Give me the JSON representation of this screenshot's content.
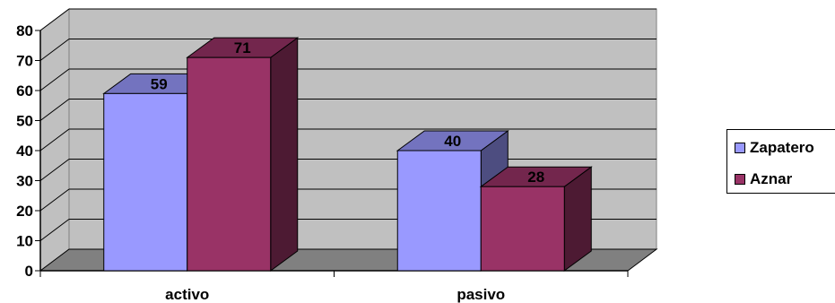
{
  "chart_data": {
    "type": "bar",
    "three_d": true,
    "categories": [
      "activo",
      "pasivo"
    ],
    "series": [
      {
        "name": "Zapatero",
        "values": [
          59,
          40
        ],
        "color": "#9999ff"
      },
      {
        "name": "Aznar",
        "values": [
          71,
          28
        ],
        "color": "#993366"
      }
    ],
    "data_labels": [
      [
        "59",
        "40"
      ],
      [
        "71",
        "28"
      ]
    ],
    "ylim": [
      0,
      80
    ],
    "yticks": [
      "0",
      "10",
      "20",
      "30",
      "40",
      "50",
      "60",
      "70",
      "80"
    ],
    "grid": true,
    "legend_position": "right",
    "title": "",
    "xlabel": "",
    "ylabel": "",
    "colors": {
      "plot_wall": "#c0c0c0",
      "floor": "#808080",
      "grid": "#000000"
    }
  }
}
